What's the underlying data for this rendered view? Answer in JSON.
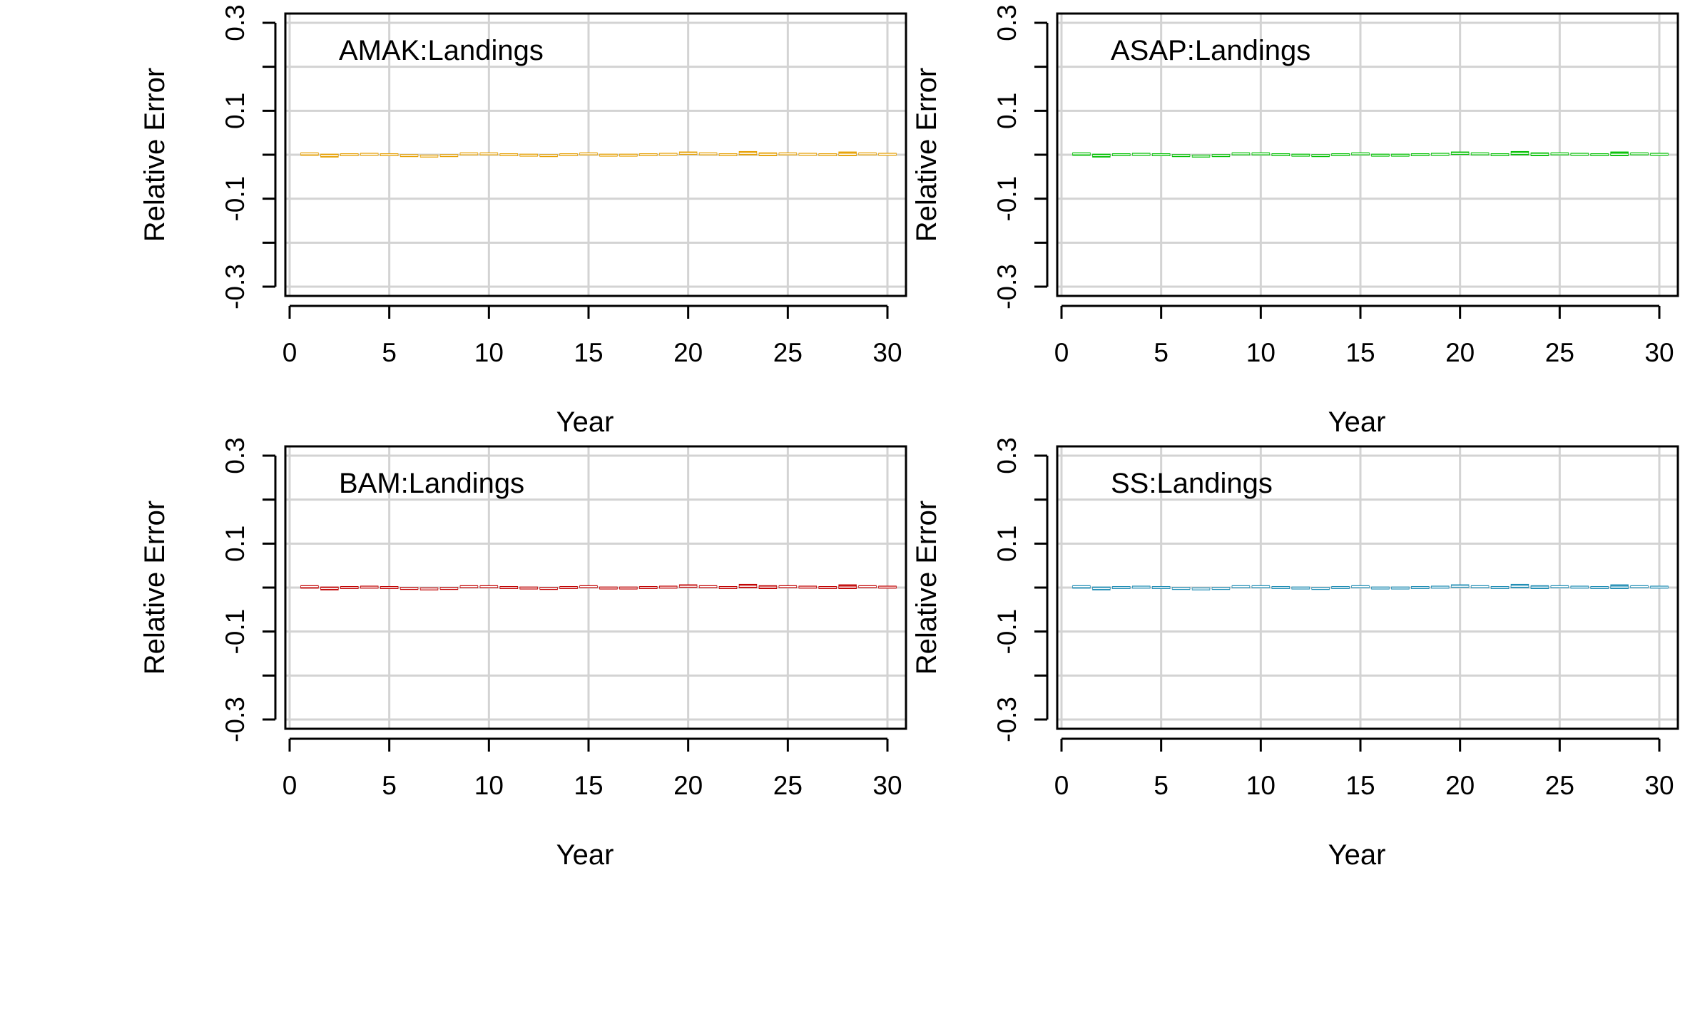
{
  "chart_data": [
    {
      "type": "box",
      "title": "AMAK:Landings",
      "xlabel": "Year",
      "ylabel": "Relative Error",
      "xlim": [
        0,
        30
      ],
      "ylim": [
        -0.3,
        0.3
      ],
      "x_ticks": [
        0,
        5,
        10,
        15,
        20,
        25,
        30
      ],
      "y_ticks": [
        -0.3,
        -0.2,
        -0.1,
        0,
        0.1,
        0.2,
        0.3
      ],
      "y_tick_labels": [
        "-0.3",
        "",
        "-0.1",
        "",
        "0.1",
        "",
        "0.3"
      ],
      "grid": true,
      "color": "#e69f00",
      "x": [
        1,
        2,
        3,
        4,
        5,
        6,
        7,
        8,
        9,
        10,
        11,
        12,
        13,
        14,
        15,
        16,
        17,
        18,
        19,
        20,
        21,
        22,
        23,
        24,
        25,
        26,
        27,
        28,
        29,
        30
      ],
      "median": [
        0.002,
        -0.002,
        0,
        0.001,
        0,
        -0.002,
        -0.003,
        -0.002,
        0.002,
        0.002,
        0,
        -0.001,
        -0.002,
        0,
        0.002,
        -0.001,
        -0.001,
        0,
        0.001,
        0.003,
        0.002,
        0,
        0.003,
        0.001,
        0.002,
        0.001,
        0,
        0.001,
        0.002,
        0.001
      ],
      "q1": [
        -0.001,
        -0.005,
        -0.002,
        -0.001,
        -0.002,
        -0.004,
        -0.005,
        -0.004,
        0,
        0,
        -0.002,
        -0.003,
        -0.004,
        -0.002,
        0,
        -0.003,
        -0.003,
        -0.002,
        -0.001,
        0.001,
        0,
        -0.002,
        0,
        -0.002,
        0,
        -0.001,
        -0.002,
        -0.002,
        0,
        -0.001
      ],
      "q3": [
        0.004,
        0.001,
        0.002,
        0.003,
        0.002,
        0,
        -0.001,
        0,
        0.004,
        0.004,
        0.002,
        0.001,
        0,
        0.002,
        0.004,
        0.001,
        0.001,
        0.002,
        0.003,
        0.006,
        0.004,
        0.002,
        0.007,
        0.004,
        0.004,
        0.003,
        0.002,
        0.006,
        0.004,
        0.003
      ]
    },
    {
      "type": "box",
      "title": "ASAP:Landings",
      "xlabel": "Year",
      "ylabel": "Relative Error",
      "xlim": [
        0,
        30
      ],
      "ylim": [
        -0.3,
        0.3
      ],
      "x_ticks": [
        0,
        5,
        10,
        15,
        20,
        25,
        30
      ],
      "y_ticks": [
        -0.3,
        -0.2,
        -0.1,
        0,
        0.1,
        0.2,
        0.3
      ],
      "y_tick_labels": [
        "-0.3",
        "",
        "-0.1",
        "",
        "0.1",
        "",
        "0.3"
      ],
      "grid": true,
      "color": "#00c000",
      "x": [
        1,
        2,
        3,
        4,
        5,
        6,
        7,
        8,
        9,
        10,
        11,
        12,
        13,
        14,
        15,
        16,
        17,
        18,
        19,
        20,
        21,
        22,
        23,
        24,
        25,
        26,
        27,
        28,
        29,
        30
      ],
      "median": [
        0.002,
        -0.002,
        0,
        0.001,
        0,
        -0.002,
        -0.003,
        -0.002,
        0.002,
        0.002,
        0,
        -0.001,
        -0.002,
        0,
        0.002,
        -0.001,
        -0.001,
        0,
        0.001,
        0.003,
        0.002,
        0,
        0.003,
        0.001,
        0.002,
        0.001,
        0,
        0.001,
        0.002,
        0.001
      ],
      "q1": [
        -0.001,
        -0.005,
        -0.002,
        -0.001,
        -0.002,
        -0.004,
        -0.005,
        -0.004,
        0,
        0,
        -0.002,
        -0.003,
        -0.004,
        -0.002,
        0,
        -0.003,
        -0.003,
        -0.002,
        -0.001,
        0.001,
        0,
        -0.002,
        0,
        -0.002,
        0,
        -0.001,
        -0.002,
        -0.002,
        0,
        -0.001
      ],
      "q3": [
        0.004,
        0.001,
        0.002,
        0.003,
        0.002,
        0,
        -0.001,
        0,
        0.004,
        0.004,
        0.002,
        0.001,
        0,
        0.002,
        0.004,
        0.001,
        0.001,
        0.002,
        0.003,
        0.006,
        0.004,
        0.002,
        0.007,
        0.004,
        0.004,
        0.003,
        0.002,
        0.006,
        0.004,
        0.003
      ]
    },
    {
      "type": "box",
      "title": "BAM:Landings",
      "xlabel": "Year",
      "ylabel": "Relative Error",
      "xlim": [
        0,
        30
      ],
      "ylim": [
        -0.3,
        0.3
      ],
      "x_ticks": [
        0,
        5,
        10,
        15,
        20,
        25,
        30
      ],
      "y_ticks": [
        -0.3,
        -0.2,
        -0.1,
        0,
        0.1,
        0.2,
        0.3
      ],
      "y_tick_labels": [
        "-0.3",
        "",
        "-0.1",
        "",
        "0.1",
        "",
        "0.3"
      ],
      "grid": true,
      "color": "#c00000",
      "x": [
        1,
        2,
        3,
        4,
        5,
        6,
        7,
        8,
        9,
        10,
        11,
        12,
        13,
        14,
        15,
        16,
        17,
        18,
        19,
        20,
        21,
        22,
        23,
        24,
        25,
        26,
        27,
        28,
        29,
        30
      ],
      "median": [
        0.002,
        -0.002,
        0,
        0.001,
        0,
        -0.002,
        -0.003,
        -0.002,
        0.002,
        0.002,
        0,
        -0.001,
        -0.002,
        0,
        0.002,
        -0.001,
        -0.001,
        0,
        0.001,
        0.003,
        0.002,
        0,
        0.003,
        0.001,
        0.002,
        0.001,
        0,
        0.001,
        0.002,
        0.001
      ],
      "q1": [
        -0.001,
        -0.005,
        -0.002,
        -0.001,
        -0.002,
        -0.004,
        -0.005,
        -0.004,
        0,
        0,
        -0.002,
        -0.003,
        -0.004,
        -0.002,
        0,
        -0.003,
        -0.003,
        -0.002,
        -0.001,
        0.001,
        0,
        -0.002,
        0,
        -0.002,
        0,
        -0.001,
        -0.002,
        -0.002,
        0,
        -0.001
      ],
      "q3": [
        0.004,
        0.001,
        0.002,
        0.003,
        0.002,
        0,
        -0.001,
        0,
        0.004,
        0.004,
        0.002,
        0.001,
        0,
        0.002,
        0.004,
        0.001,
        0.001,
        0.002,
        0.003,
        0.006,
        0.004,
        0.002,
        0.007,
        0.004,
        0.004,
        0.003,
        0.002,
        0.006,
        0.004,
        0.003
      ]
    },
    {
      "type": "box",
      "title": "SS:Landings",
      "xlabel": "Year",
      "ylabel": "Relative Error",
      "xlim": [
        0,
        30
      ],
      "ylim": [
        -0.3,
        0.3
      ],
      "x_ticks": [
        0,
        5,
        10,
        15,
        20,
        25,
        30
      ],
      "y_ticks": [
        -0.3,
        -0.2,
        -0.1,
        0,
        0.1,
        0.2,
        0.3
      ],
      "y_tick_labels": [
        "-0.3",
        "",
        "-0.1",
        "",
        "0.1",
        "",
        "0.3"
      ],
      "grid": true,
      "color": "#1e8cb4",
      "x": [
        1,
        2,
        3,
        4,
        5,
        6,
        7,
        8,
        9,
        10,
        11,
        12,
        13,
        14,
        15,
        16,
        17,
        18,
        19,
        20,
        21,
        22,
        23,
        24,
        25,
        26,
        27,
        28,
        29,
        30
      ],
      "median": [
        0.002,
        -0.002,
        0,
        0.001,
        0,
        -0.002,
        -0.003,
        -0.002,
        0.002,
        0.002,
        0,
        -0.001,
        -0.002,
        0,
        0.002,
        -0.001,
        -0.001,
        0,
        0.001,
        0.003,
        0.002,
        0,
        0.003,
        0.001,
        0.002,
        0.001,
        0,
        0.001,
        0.002,
        0.001
      ],
      "q1": [
        -0.001,
        -0.005,
        -0.002,
        -0.001,
        -0.002,
        -0.004,
        -0.005,
        -0.004,
        0,
        0,
        -0.002,
        -0.003,
        -0.004,
        -0.002,
        0,
        -0.003,
        -0.003,
        -0.002,
        -0.001,
        0.001,
        0,
        -0.002,
        0,
        -0.002,
        0,
        -0.001,
        -0.002,
        -0.002,
        0,
        -0.001
      ],
      "q3": [
        0.004,
        0.001,
        0.002,
        0.003,
        0.002,
        0,
        -0.001,
        0,
        0.004,
        0.004,
        0.002,
        0.001,
        0,
        0.002,
        0.004,
        0.001,
        0.001,
        0.002,
        0.003,
        0.006,
        0.004,
        0.002,
        0.007,
        0.004,
        0.004,
        0.003,
        0.002,
        0.006,
        0.004,
        0.003
      ]
    }
  ]
}
